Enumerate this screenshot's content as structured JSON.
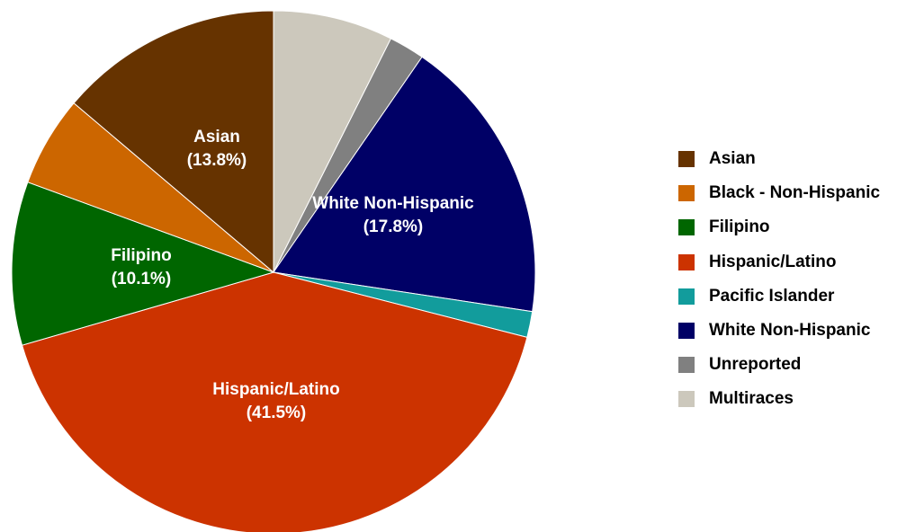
{
  "chart_data": {
    "type": "pie",
    "title": "",
    "start_angle_deg": 0,
    "direction": "clockwise",
    "legend_position": "right",
    "series": [
      {
        "name": "",
        "slices": [
          {
            "key": "multiraces",
            "label": "Multiraces",
            "value": 7.4,
            "color": "#CCC8BC",
            "data_label": null,
            "data_label_value": null
          },
          {
            "key": "unreported",
            "label": "Unreported",
            "value": 2.2,
            "color": "#808080",
            "data_label": null,
            "data_label_value": null
          },
          {
            "key": "white",
            "label": "White Non-Hispanic",
            "value": 17.8,
            "color": "#000066",
            "data_label": "White Non-Hispanic",
            "data_label_value": "(17.8%)"
          },
          {
            "key": "pacific",
            "label": "Pacific Islander",
            "value": 1.6,
            "color": "#129C9C",
            "data_label": null,
            "data_label_value": null
          },
          {
            "key": "hispanic",
            "label": "Hispanic/Latino",
            "value": 41.5,
            "color": "#CC3300",
            "data_label": "Hispanic/Latino",
            "data_label_value": "(41.5%)"
          },
          {
            "key": "filipino",
            "label": "Filipino",
            "value": 10.1,
            "color": "#006600",
            "data_label": "Filipino",
            "data_label_value": "(10.1%)"
          },
          {
            "key": "black",
            "label": "Black - Non-Hispanic",
            "value": 5.6,
            "color": "#CC6600",
            "data_label": null,
            "data_label_value": null
          },
          {
            "key": "asian",
            "label": "Asian",
            "value": 13.8,
            "color": "#663300",
            "data_label": "Asian",
            "data_label_value": "(13.8%)"
          }
        ]
      }
    ],
    "legend": {
      "items": [
        {
          "label": "Asian",
          "color": "#663300"
        },
        {
          "label": "Black - Non-Hispanic",
          "color": "#CC6600"
        },
        {
          "label": "Filipino",
          "color": "#006600"
        },
        {
          "label": "Hispanic/Latino",
          "color": "#CC3300"
        },
        {
          "label": "Pacific Islander",
          "color": "#129C9C"
        },
        {
          "label": "White Non-Hispanic",
          "color": "#000066"
        },
        {
          "label": "Unreported",
          "color": "#808080"
        },
        {
          "label": "Multiraces",
          "color": "#CCC8BC"
        }
      ]
    }
  }
}
